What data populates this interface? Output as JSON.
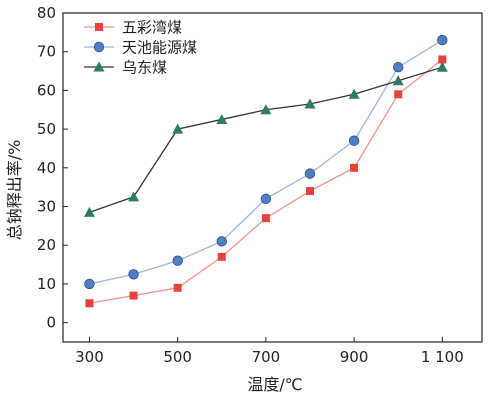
{
  "chart_data": {
    "type": "line",
    "title": "",
    "xlabel": "温度/℃",
    "ylabel": "总钠释出率/%",
    "x": [
      300,
      400,
      500,
      600,
      700,
      800,
      900,
      1000,
      1100
    ],
    "x_tick_values": [
      300,
      500,
      700,
      900,
      1100
    ],
    "x_tick_labels": [
      "300",
      "500",
      "700",
      "900",
      "1 100"
    ],
    "xlim": [
      240,
      1190
    ],
    "ylim": [
      -5,
      80
    ],
    "y_ticks": [
      0,
      10,
      20,
      30,
      40,
      50,
      60,
      70,
      80
    ],
    "grid": false,
    "legend_position": "top-left",
    "series": [
      {
        "name": "五彩湾煤",
        "color": "#e8403a",
        "line_color": "#f2938f",
        "marker": "square",
        "values": [
          5,
          7,
          9,
          17,
          27,
          34,
          40,
          59,
          68
        ]
      },
      {
        "name": "天池能源煤",
        "color": "#4f7fc3",
        "line_color": "#9bb7e0",
        "marker": "circle",
        "values": [
          10,
          12.5,
          16,
          21,
          32,
          38.5,
          47,
          66,
          73
        ]
      },
      {
        "name": "乌东煤",
        "color": "#2e7a66",
        "line_color": "#333333",
        "marker": "triangle",
        "values": [
          28.5,
          32.5,
          50,
          52.5,
          55,
          56.5,
          59,
          62.5,
          66
        ]
      }
    ]
  }
}
